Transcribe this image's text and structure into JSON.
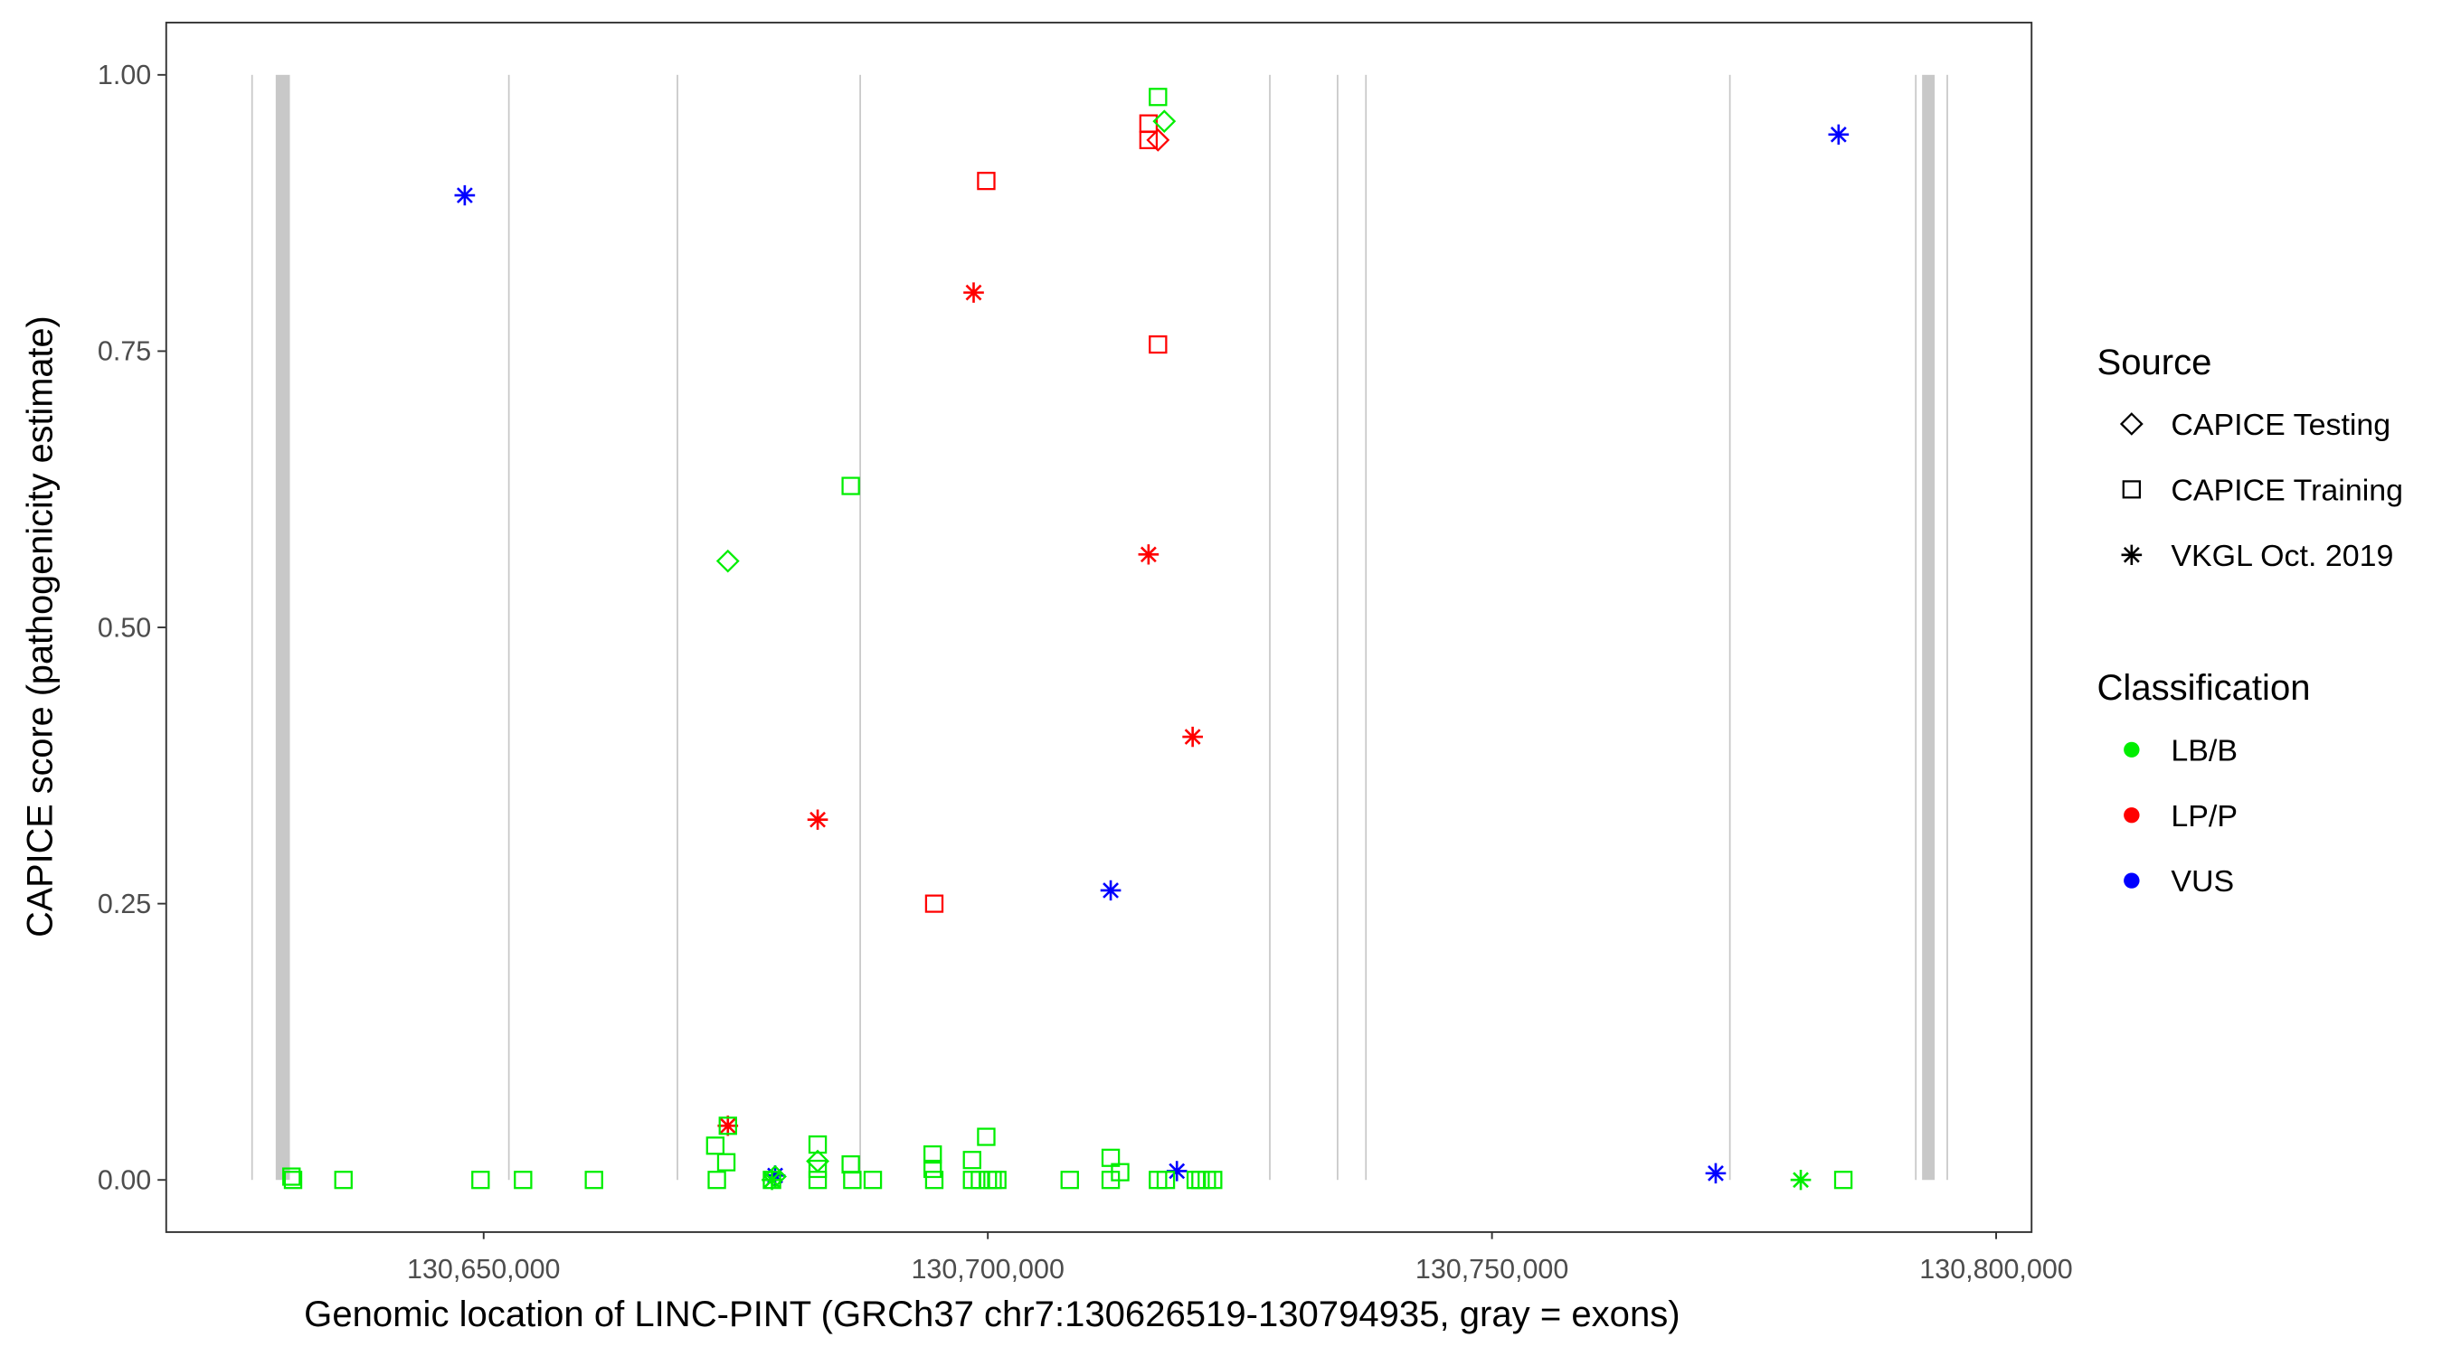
{
  "chart_data": {
    "type": "scatter",
    "xlabel": "Genomic location of LINC-PINT (GRCh37 chr7:130626519-130794935, gray = exons)",
    "ylabel": "CAPICE score (pathogenicity estimate)",
    "xlim": [
      130618438,
      130803594
    ],
    "ylim": [
      -0.0465,
      1.048
    ],
    "x_ticks": [
      130650000,
      130700000,
      130750000,
      130800000
    ],
    "x_tick_labels": [
      "130,650,000",
      "130,700,000",
      "130,750,000",
      "130,800,000"
    ],
    "y_ticks": [
      0,
      0.25,
      0.5,
      0.75,
      1.0
    ],
    "y_tick_labels": [
      "0.00",
      "0.25",
      "0.50",
      "0.75",
      "1.00"
    ],
    "grid": false,
    "legend_position": "right",
    "colors": {
      "LB/B": "#00ee00",
      "LP/P": "#ff0000",
      "VUS": "#0000ff",
      "exon": "#c8c8c8"
    },
    "legend": {
      "source_title": "Source",
      "source_items": [
        {
          "label": "CAPICE Testing",
          "shape": "diamond"
        },
        {
          "label": "CAPICE Training",
          "shape": "square"
        },
        {
          "label": "VKGL Oct. 2019",
          "shape": "star"
        }
      ],
      "class_title": "Classification",
      "class_items": [
        {
          "label": "LB/B"
        },
        {
          "label": "LP/P"
        },
        {
          "label": "VUS"
        }
      ]
    },
    "exons": [
      [
        130627031,
        130627031
      ],
      [
        130629375,
        130630781
      ],
      [
        130652500,
        130652500
      ],
      [
        130669219,
        130669219
      ],
      [
        130687344,
        130687344
      ],
      [
        130727969,
        130727969
      ],
      [
        130734688,
        130734688
      ],
      [
        130737500,
        130737500
      ],
      [
        130773594,
        130773594
      ],
      [
        130792031,
        130792031
      ],
      [
        130792656,
        130793906
      ],
      [
        130795156,
        130795156
      ]
    ],
    "points_fields": [
      "x",
      "score",
      "classification",
      "source"
    ],
    "points": [
      [
        130648125,
        0.891,
        "VUS",
        "star"
      ],
      [
        130784375,
        0.946,
        "VUS",
        "star"
      ],
      [
        130712188,
        0.262,
        "VUS",
        "star"
      ],
      [
        130718750,
        0.008,
        "VUS",
        "star"
      ],
      [
        130772188,
        0.006,
        "VUS",
        "star"
      ],
      [
        130678906,
        0.004,
        "VUS",
        "star"
      ],
      [
        130698594,
        0.803,
        "LP/P",
        "star"
      ],
      [
        130715938,
        0.566,
        "LP/P",
        "star"
      ],
      [
        130720313,
        0.401,
        "LP/P",
        "star"
      ],
      [
        130683125,
        0.326,
        "LP/P",
        "star"
      ],
      [
        130674219,
        0.049,
        "LP/P",
        "star"
      ],
      [
        130780625,
        0.0,
        "LB/B",
        "star"
      ],
      [
        130678594,
        0.0,
        "LB/B",
        "star"
      ],
      [
        130699844,
        0.904,
        "LP/P",
        "square"
      ],
      [
        130716875,
        0.756,
        "LP/P",
        "square"
      ],
      [
        130715938,
        0.956,
        "LP/P",
        "square"
      ],
      [
        130715938,
        0.941,
        "LP/P",
        "square"
      ],
      [
        130694688,
        0.25,
        "LP/P",
        "square"
      ],
      [
        130716875,
        0.941,
        "LP/P",
        "diamond"
      ],
      [
        130717500,
        0.958,
        "LB/B",
        "diamond"
      ],
      [
        130674219,
        0.56,
        "LB/B",
        "diamond"
      ],
      [
        130683125,
        0.017,
        "LB/B",
        "diamond"
      ],
      [
        130678906,
        0.003,
        "LB/B",
        "diamond"
      ],
      [
        130716875,
        0.98,
        "LB/B",
        "square"
      ],
      [
        130686406,
        0.628,
        "LB/B",
        "square"
      ],
      [
        130630938,
        0.003,
        "LB/B",
        "square"
      ],
      [
        130631094,
        0.0,
        "LB/B",
        "square"
      ],
      [
        130636094,
        0.0,
        "LB/B",
        "square"
      ],
      [
        130649688,
        0.0,
        "LB/B",
        "square"
      ],
      [
        130653906,
        0.0,
        "LB/B",
        "square"
      ],
      [
        130660938,
        0.0,
        "LB/B",
        "square"
      ],
      [
        130672969,
        0.031,
        "LB/B",
        "square"
      ],
      [
        130673125,
        0.0,
        "LB/B",
        "square"
      ],
      [
        130674063,
        0.016,
        "LB/B",
        "square"
      ],
      [
        130674219,
        0.049,
        "LB/B",
        "square"
      ],
      [
        130678594,
        0.0,
        "LB/B",
        "square"
      ],
      [
        130683125,
        0.032,
        "LB/B",
        "square"
      ],
      [
        130683125,
        0.0,
        "LB/B",
        "square"
      ],
      [
        130683125,
        0.01,
        "LB/B",
        "square"
      ],
      [
        130686406,
        0.014,
        "LB/B",
        "square"
      ],
      [
        130686563,
        0.0,
        "LB/B",
        "square"
      ],
      [
        130688594,
        0.0,
        "LB/B",
        "square"
      ],
      [
        130694531,
        0.023,
        "LB/B",
        "square"
      ],
      [
        130694531,
        0.01,
        "LB/B",
        "square"
      ],
      [
        130694688,
        0.0,
        "LB/B",
        "square"
      ],
      [
        130698438,
        0.018,
        "LB/B",
        "square"
      ],
      [
        130698438,
        0.0,
        "LB/B",
        "square"
      ],
      [
        130699219,
        0.0,
        "LB/B",
        "square"
      ],
      [
        130699844,
        0.039,
        "LB/B",
        "square"
      ],
      [
        130700000,
        0.0,
        "LB/B",
        "square"
      ],
      [
        130700469,
        0.0,
        "LB/B",
        "square"
      ],
      [
        130700938,
        0.0,
        "LB/B",
        "square"
      ],
      [
        130708125,
        0.0,
        "LB/B",
        "square"
      ],
      [
        130712188,
        0.02,
        "LB/B",
        "square"
      ],
      [
        130712188,
        0.0,
        "LB/B",
        "square"
      ],
      [
        130713125,
        0.007,
        "LB/B",
        "square"
      ],
      [
        130716875,
        0.0,
        "LB/B",
        "square"
      ],
      [
        130717656,
        0.0,
        "LB/B",
        "square"
      ],
      [
        130720625,
        0.0,
        "LB/B",
        "square"
      ],
      [
        130721094,
        0.0,
        "LB/B",
        "square"
      ],
      [
        130721719,
        0.0,
        "LB/B",
        "square"
      ],
      [
        130722344,
        0.0,
        "LB/B",
        "square"
      ],
      [
        130784844,
        0.0,
        "LB/B",
        "square"
      ]
    ]
  }
}
